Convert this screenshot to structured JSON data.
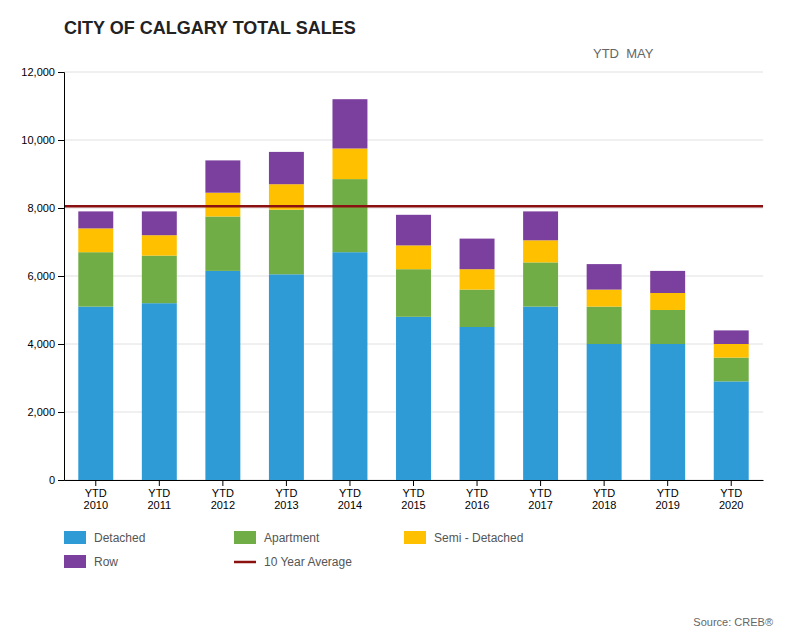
{
  "chart_data": {
    "type": "bar",
    "stacked": true,
    "title": "CITY OF CALGARY TOTAL SALES",
    "subtitle": "YTD  MAY",
    "annotations": [
      "Source: CREB®"
    ],
    "categories": [
      "YTD\n2010",
      "YTD\n2011",
      "YTD\n2012",
      "YTD\n2013",
      "YTD\n2014",
      "YTD\n2015",
      "YTD\n2016",
      "YTD\n2017",
      "YTD\n2018",
      "YTD\n2019",
      "YTD\n2020"
    ],
    "series": [
      {
        "name": "Detached",
        "color": "#2E9BD6",
        "values": [
          5100,
          5200,
          6150,
          6050,
          6700,
          4800,
          4500,
          5100,
          4000,
          4000,
          2900
        ]
      },
      {
        "name": "Apartment",
        "color": "#70AD47",
        "values": [
          1600,
          1400,
          1600,
          1900,
          2150,
          1400,
          1100,
          1300,
          1100,
          1000,
          700
        ]
      },
      {
        "name": "Semi - Detached",
        "color": "#FFC000",
        "values": [
          700,
          600,
          700,
          750,
          900,
          700,
          600,
          650,
          500,
          500,
          400
        ]
      },
      {
        "name": "Row",
        "color": "#7B3F9E",
        "values": [
          500,
          700,
          950,
          950,
          1450,
          900,
          900,
          850,
          750,
          650,
          400
        ]
      }
    ],
    "reference_lines": [
      {
        "name": "10 Year Average",
        "color": "#8B1010",
        "value": 8050
      }
    ],
    "ylim": [
      0,
      12000
    ],
    "yticks": [
      0,
      {
        "value": 2000,
        "label": "2,000"
      },
      {
        "value": 4000,
        "label": "4,000"
      },
      {
        "value": 6000,
        "label": "6,000"
      },
      {
        "value": 8000,
        "label": "8,000"
      },
      {
        "value": 10000,
        "label": "10,000"
      },
      {
        "value": 12000,
        "label": "12,000"
      }
    ],
    "grid": true,
    "legend": "bottom"
  }
}
